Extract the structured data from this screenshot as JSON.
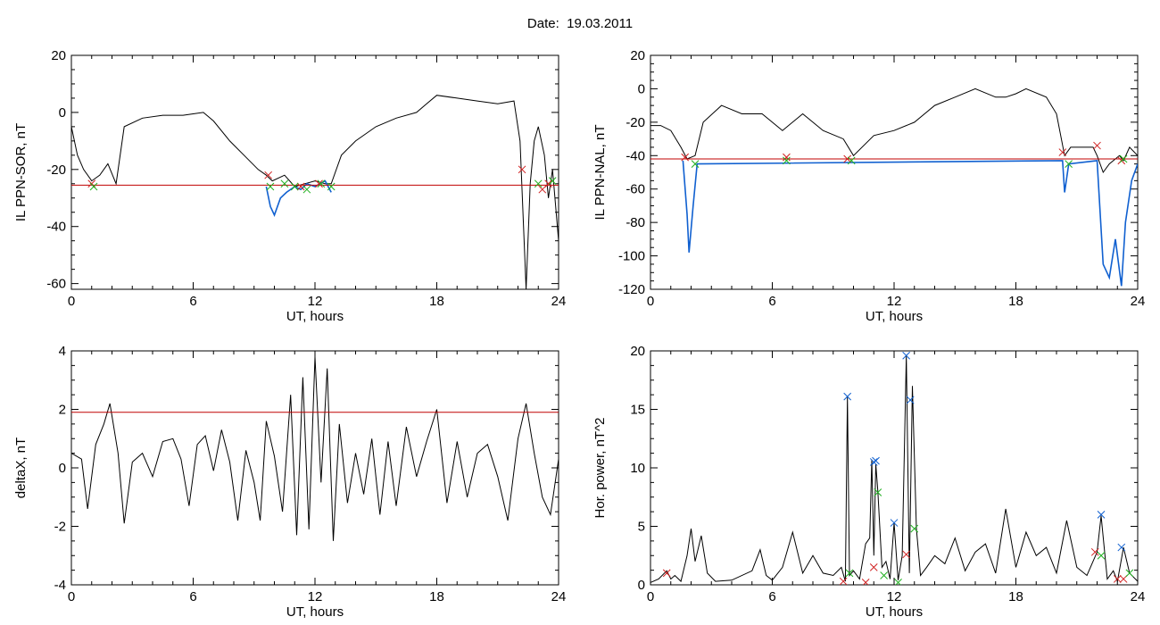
{
  "figure_title": "Date:  19.03.2011",
  "chart_data": [
    {
      "type": "line",
      "xlabel": "UT, hours",
      "ylabel": "IL PPN-SOR, nT",
      "xlim": [
        0,
        24
      ],
      "ylim": [
        -62,
        20
      ],
      "xticks": [
        0,
        6,
        12,
        18,
        24
      ],
      "yticks": [
        -60,
        -40,
        -20,
        0,
        20
      ],
      "threshold": -25.5,
      "series": [
        {
          "color": "#000000",
          "x": [
            0,
            0.3,
            0.6,
            1.0,
            1.4,
            1.8,
            2.2,
            2.6,
            3.5,
            4.5,
            5.5,
            6.5,
            7.0,
            7.8,
            8.5,
            9.2,
            9.6,
            9.9,
            10.5,
            11.0,
            11.5,
            12.0,
            12.5,
            12.8,
            13.3,
            14.0,
            15.0,
            16.0,
            17.0,
            17.5,
            18.0,
            19.0,
            20.0,
            21.0,
            21.8,
            22.1,
            22.4,
            22.6,
            22.8,
            23.0,
            23.3,
            23.5,
            23.7,
            24
          ],
          "y": [
            -5,
            -15,
            -20,
            -24,
            -22,
            -18,
            -25,
            -5,
            -2,
            -1,
            -1,
            0,
            -3,
            -10,
            -15,
            -20,
            -22,
            -24,
            -22,
            -26,
            -25,
            -24,
            -25,
            -25,
            -15,
            -10,
            -5,
            -2,
            0,
            3,
            6,
            5,
            4,
            3,
            4,
            -10,
            -62,
            -25,
            -10,
            -5,
            -15,
            -30,
            -20,
            -45
          ]
        },
        {
          "color": "#1060d0",
          "x": [
            9.6,
            9.8,
            10.0,
            10.3,
            10.6,
            11.0,
            11.3,
            11.6,
            12.0,
            12.5,
            12.8
          ],
          "y": [
            -26,
            -33,
            -36,
            -30,
            -28,
            -26,
            -27,
            -25,
            -26,
            -24,
            -28
          ]
        }
      ],
      "markers": [
        {
          "color": "#d02020",
          "x": [
            1.0,
            9.7,
            11.3,
            12.2,
            22.2,
            23.2,
            23.5
          ],
          "y": [
            -25,
            -22,
            -26,
            -25,
            -20,
            -27,
            -25
          ]
        },
        {
          "color": "#20b020",
          "x": [
            1.1,
            9.8,
            10.5,
            11.0,
            11.6,
            12.3,
            12.8,
            23.0,
            23.7
          ],
          "y": [
            -26,
            -26,
            -25,
            -26,
            -27,
            -25,
            -26,
            -25,
            -24
          ]
        }
      ]
    },
    {
      "type": "line",
      "xlabel": "UT, hours",
      "ylabel": "IL PPN-NAL, nT",
      "xlim": [
        0,
        24
      ],
      "ylim": [
        -120,
        20
      ],
      "xticks": [
        0,
        6,
        12,
        18,
        24
      ],
      "yticks": [
        -120,
        -100,
        -80,
        -60,
        -40,
        -20,
        0,
        20
      ],
      "threshold": -42,
      "series": [
        {
          "color": "#000000",
          "x": [
            0,
            0.5,
            1.0,
            1.5,
            1.8,
            2.2,
            2.6,
            3.5,
            4.5,
            5.5,
            6.5,
            7.5,
            8.5,
            9.5,
            10.0,
            11.0,
            12.0,
            13.0,
            14.0,
            15.0,
            16.0,
            17.0,
            17.5,
            18.0,
            18.5,
            19.5,
            20.0,
            20.4,
            20.7,
            21.0,
            21.5,
            21.8,
            22.0,
            22.3,
            22.6,
            22.9,
            23.1,
            23.3,
            23.6,
            24
          ],
          "y": [
            -22,
            -22,
            -25,
            -35,
            -42,
            -40,
            -20,
            -10,
            -15,
            -15,
            -25,
            -15,
            -25,
            -30,
            -40,
            -28,
            -25,
            -20,
            -10,
            -5,
            0,
            -5,
            -5,
            -3,
            0,
            -5,
            -15,
            -40,
            -35,
            -35,
            -35,
            -35,
            -40,
            -50,
            -45,
            -42,
            -40,
            -43,
            -35,
            -40
          ]
        },
        {
          "color": "#1060d0",
          "x": [
            1.6,
            1.8,
            1.9,
            2.1,
            2.3,
            20.3,
            20.4,
            20.6,
            22.0,
            22.3,
            22.6,
            22.9,
            23.2,
            23.4,
            23.7,
            24
          ],
          "y": [
            -43,
            -75,
            -98,
            -70,
            -45,
            -43,
            -62,
            -45,
            -43,
            -105,
            -113,
            -90,
            -118,
            -80,
            -55,
            -45
          ]
        }
      ],
      "markers": [
        {
          "color": "#d02020",
          "x": [
            1.7,
            6.7,
            9.7,
            20.3,
            22.0,
            23.2
          ],
          "y": [
            -41,
            -41,
            -42,
            -38,
            -34,
            -43
          ]
        },
        {
          "color": "#20b020",
          "x": [
            2.2,
            6.7,
            9.9,
            20.6,
            23.3
          ],
          "y": [
            -45,
            -43,
            -43,
            -45,
            -42
          ]
        }
      ]
    },
    {
      "type": "line",
      "xlabel": "UT, hours",
      "ylabel": "deltaX, nT",
      "xlim": [
        0,
        24
      ],
      "ylim": [
        -4,
        4
      ],
      "xticks": [
        0,
        6,
        12,
        18,
        24
      ],
      "yticks": [
        -4,
        -2,
        0,
        2,
        4
      ],
      "threshold": 1.9,
      "series": [
        {
          "color": "#000000",
          "x": [
            0,
            0.5,
            0.8,
            1.2,
            1.6,
            1.9,
            2.3,
            2.6,
            3.0,
            3.5,
            4.0,
            4.5,
            5.0,
            5.4,
            5.8,
            6.2,
            6.6,
            7.0,
            7.4,
            7.8,
            8.2,
            8.6,
            9.0,
            9.3,
            9.6,
            10.0,
            10.4,
            10.8,
            11.1,
            11.4,
            11.7,
            12.0,
            12.3,
            12.6,
            12.9,
            13.2,
            13.6,
            14.0,
            14.4,
            14.8,
            15.2,
            15.6,
            16.0,
            16.5,
            17.0,
            17.5,
            18.0,
            18.5,
            19.0,
            19.5,
            20.0,
            20.5,
            21.0,
            21.5,
            22.0,
            22.4,
            22.8,
            23.2,
            23.6,
            24
          ],
          "y": [
            0.5,
            0.3,
            -1.4,
            0.8,
            1.5,
            2.2,
            0.5,
            -1.9,
            0.2,
            0.5,
            -0.3,
            0.9,
            1.0,
            0.3,
            -1.3,
            0.8,
            1.1,
            -0.1,
            1.3,
            0.2,
            -1.8,
            0.6,
            -0.5,
            -1.8,
            1.6,
            0.4,
            -1.5,
            2.5,
            -2.3,
            3.1,
            -2.1,
            3.8,
            -0.5,
            3.4,
            -2.5,
            1.5,
            -1.2,
            0.5,
            -0.9,
            1.0,
            -1.6,
            0.9,
            -1.3,
            1.4,
            -0.3,
            0.9,
            2.0,
            -1.2,
            0.9,
            -1.0,
            0.5,
            0.8,
            -0.3,
            -1.8,
            1.0,
            2.2,
            0.5,
            -1.0,
            -1.6,
            0.3
          ]
        }
      ],
      "markers": []
    },
    {
      "type": "line",
      "xlabel": "UT, hours",
      "ylabel": "Hor. power, nT^2",
      "xlim": [
        0,
        24
      ],
      "ylim": [
        0,
        20
      ],
      "xticks": [
        0,
        6,
        12,
        18,
        24
      ],
      "yticks": [
        0,
        5,
        10,
        15,
        20
      ],
      "threshold": null,
      "series": [
        {
          "color": "#000000",
          "x": [
            0,
            0.4,
            0.8,
            1.0,
            1.2,
            1.5,
            1.8,
            2.0,
            2.2,
            2.5,
            2.8,
            3.2,
            4.0,
            5.0,
            5.4,
            5.7,
            6.0,
            6.5,
            7.0,
            7.5,
            8.0,
            8.5,
            9.0,
            9.4,
            9.6,
            9.7,
            9.8,
            10.0,
            10.3,
            10.6,
            10.8,
            10.9,
            11.0,
            11.1,
            11.2,
            11.4,
            11.6,
            11.8,
            12.0,
            12.2,
            12.4,
            12.6,
            12.75,
            12.9,
            13.1,
            13.3,
            13.6,
            14.0,
            14.5,
            15.0,
            15.5,
            16.0,
            16.5,
            17.0,
            17.5,
            18.0,
            18.5,
            19.0,
            19.5,
            20.0,
            20.5,
            21.0,
            21.5,
            22.0,
            22.2,
            22.5,
            22.8,
            23.0,
            23.3,
            23.6,
            24
          ],
          "y": [
            0.2,
            0.5,
            1.2,
            0.5,
            0.8,
            0.3,
            2.5,
            4.8,
            2.0,
            4.2,
            1.0,
            0.3,
            0.4,
            1.2,
            3.0,
            0.8,
            0.4,
            1.5,
            4.5,
            1.0,
            2.5,
            1.0,
            0.8,
            1.5,
            0.3,
            16.1,
            0.8,
            1.2,
            0.5,
            3.5,
            4.0,
            10.7,
            2.5,
            10.3,
            8.0,
            1.5,
            2.0,
            0.5,
            5.3,
            0.4,
            2.5,
            19.6,
            1.0,
            17.0,
            4.8,
            0.8,
            1.5,
            2.5,
            1.8,
            4.0,
            1.2,
            2.8,
            3.5,
            1.0,
            6.5,
            1.5,
            4.5,
            2.5,
            3.2,
            1.0,
            5.5,
            1.5,
            0.8,
            2.8,
            5.9,
            0.5,
            1.2,
            0.3,
            3.2,
            1.0,
            0.3
          ]
        }
      ],
      "markers": [
        {
          "color": "#1060d0",
          "x": [
            9.7,
            11.0,
            11.1,
            12.0,
            12.6,
            12.8,
            22.2,
            23.2
          ],
          "y": [
            16.1,
            10.5,
            10.6,
            5.3,
            19.6,
            15.8,
            6.0,
            3.2
          ]
        },
        {
          "color": "#d02020",
          "x": [
            0.8,
            9.5,
            10.6,
            11.0,
            12.6,
            21.9,
            23.0,
            23.3
          ],
          "y": [
            1.0,
            0.3,
            0.2,
            1.5,
            2.6,
            2.8,
            0.5,
            0.5
          ]
        },
        {
          "color": "#20b020",
          "x": [
            9.8,
            11.2,
            11.5,
            12.2,
            13.0,
            22.2,
            23.6
          ],
          "y": [
            1.0,
            7.9,
            0.8,
            0.2,
            4.8,
            2.5,
            1.0
          ]
        }
      ]
    }
  ]
}
